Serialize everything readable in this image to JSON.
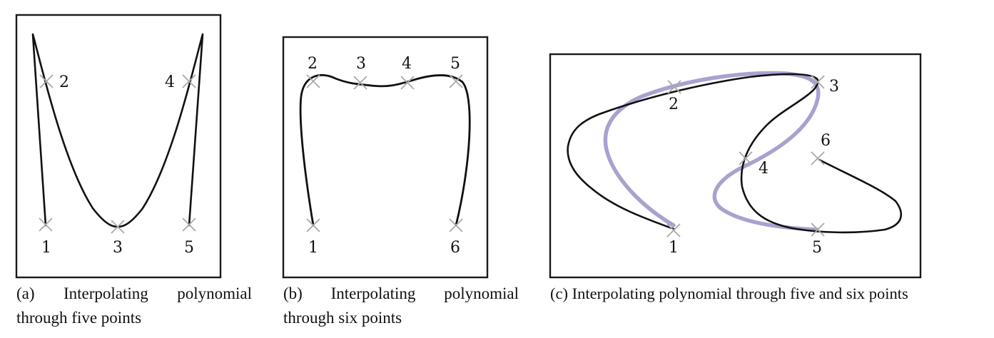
{
  "figure": {
    "panels": [
      {
        "id": "a",
        "caption_line1_words": [
          "(a)",
          "Interpolating",
          "polynomial"
        ],
        "caption_line2": "through five points",
        "point_labels": [
          "1",
          "2",
          "3",
          "4",
          "5"
        ]
      },
      {
        "id": "b",
        "caption_line1_words": [
          "(b)",
          "Interpolating",
          "polynomial"
        ],
        "caption_line2": "through six points",
        "point_labels": [
          "1",
          "2",
          "3",
          "4",
          "5",
          "6"
        ]
      },
      {
        "id": "c",
        "caption_line1": "(c) Interpolating polynomial through five and six points",
        "point_labels": [
          "1",
          "2",
          "3",
          "4",
          "5",
          "6"
        ]
      }
    ],
    "colors": {
      "curve": "#111111",
      "data_point_marker": "#a8a8a8",
      "five_point_curve": "#a7a3cf",
      "frame": "#1a1a1a"
    }
  }
}
